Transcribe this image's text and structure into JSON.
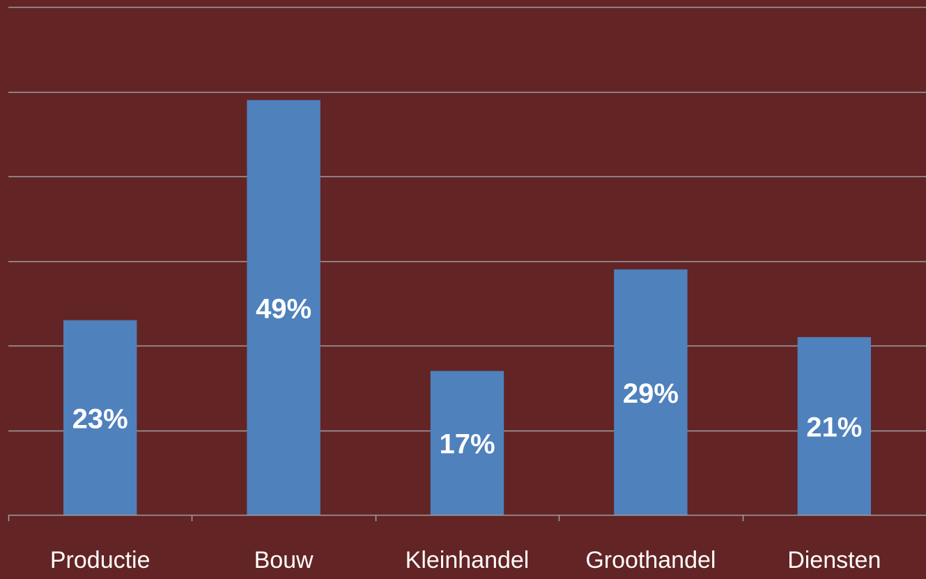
{
  "chart_data": {
    "type": "bar",
    "title": "",
    "xlabel": "",
    "ylabel": "",
    "categories": [
      "Productie",
      "Bouw",
      "Kleinhandel",
      "Groothandel",
      "Diensten"
    ],
    "values": [
      23,
      49,
      17,
      29,
      21
    ],
    "data_labels": [
      "23%",
      "49%",
      "17%",
      "29%",
      "21%"
    ],
    "ylim": [
      0,
      60
    ],
    "gridlines": true,
    "y_tick_labels_visible": false,
    "legend": "none",
    "colors": {
      "background": "#632425",
      "bar": "#4F81BD",
      "gridline": "#A0A0A0",
      "axis": "#A0A0A0",
      "category_label": "#FFFFFF",
      "data_label": "#FFFFFF"
    }
  }
}
